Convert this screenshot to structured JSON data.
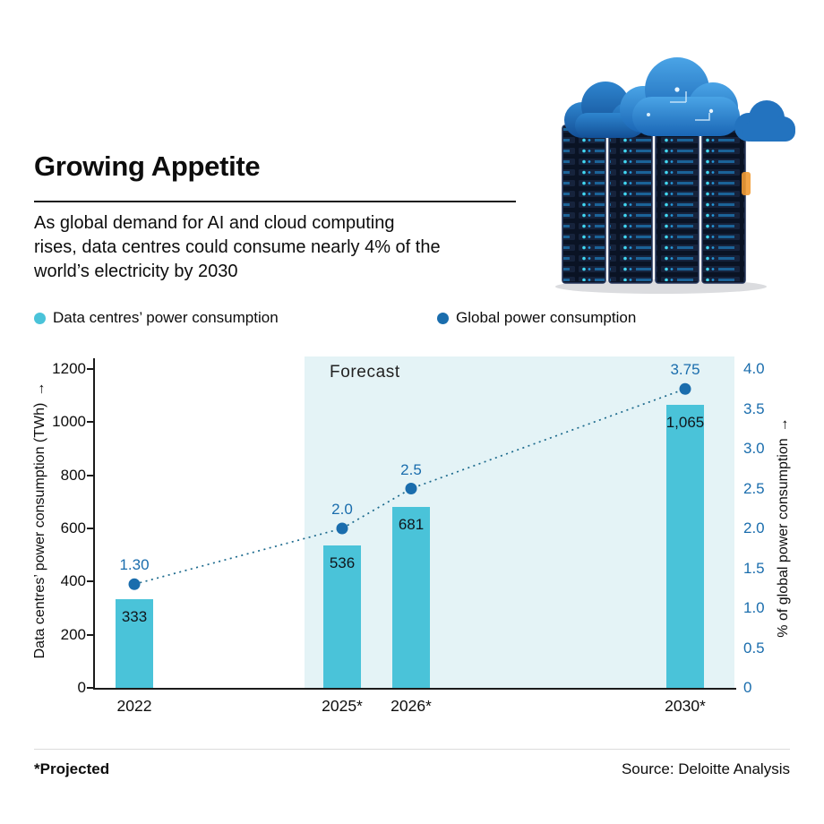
{
  "header": {
    "title": "Growing Appetite",
    "subtitle": "As global demand for AI and cloud computing rises, data centres could consume nearly 4% of the world’s electricity by 2030"
  },
  "legend": [
    {
      "label": "Data centres’ power consumption",
      "color": "#4ac3d9"
    },
    {
      "label": "Global power consumption",
      "color": "#1a6dad"
    }
  ],
  "chart_data": {
    "type": "bar+line",
    "categories": [
      "2022",
      "2025*",
      "2026*",
      "2030*"
    ],
    "x_years": [
      2022,
      2025,
      2026,
      2030
    ],
    "series": [
      {
        "name": "Data centres’ power consumption",
        "type": "bar",
        "axis": "left",
        "values": [
          333,
          536,
          681,
          1065
        ],
        "value_labels": [
          "333",
          "536",
          "681",
          "1,065"
        ],
        "color": "#4ac3d9"
      },
      {
        "name": "Global power consumption",
        "type": "line",
        "axis": "right",
        "values": [
          1.3,
          2.0,
          2.5,
          3.75
        ],
        "value_labels": [
          "1.30",
          "2.0",
          "2.5",
          "3.75"
        ],
        "color": "#1a6dad",
        "line_style": "dotted",
        "line_color": "#1c6a8d"
      }
    ],
    "left_axis": {
      "label": "Data centres’ power consumption (TWh)",
      "arrow": "→",
      "min": 0,
      "max": 1200,
      "tick_values": [
        0,
        200,
        400,
        600,
        800,
        1000,
        1200
      ],
      "tick_labels": [
        "0",
        "200",
        "400",
        "600",
        "800",
        "1000",
        "1200"
      ]
    },
    "right_axis": {
      "label": "% of global power consumption",
      "arrow": "→",
      "min": 0,
      "max": 4,
      "tick_values": [
        0,
        0.5,
        1,
        1.5,
        2,
        2.5,
        3,
        3.5,
        4
      ],
      "tick_labels": [
        "0",
        "0.5",
        "1.0",
        "1.5",
        "2.0",
        "2.5",
        "3.0",
        "3.5",
        "4.0"
      ]
    },
    "forecast": {
      "label": "Forecast",
      "from_category_index": 1,
      "band_color": "#e4f3f6"
    },
    "grid": false,
    "legend_position": "top"
  },
  "footer": {
    "note": "*Projected",
    "source": "Source: Deloitte Analysis"
  }
}
